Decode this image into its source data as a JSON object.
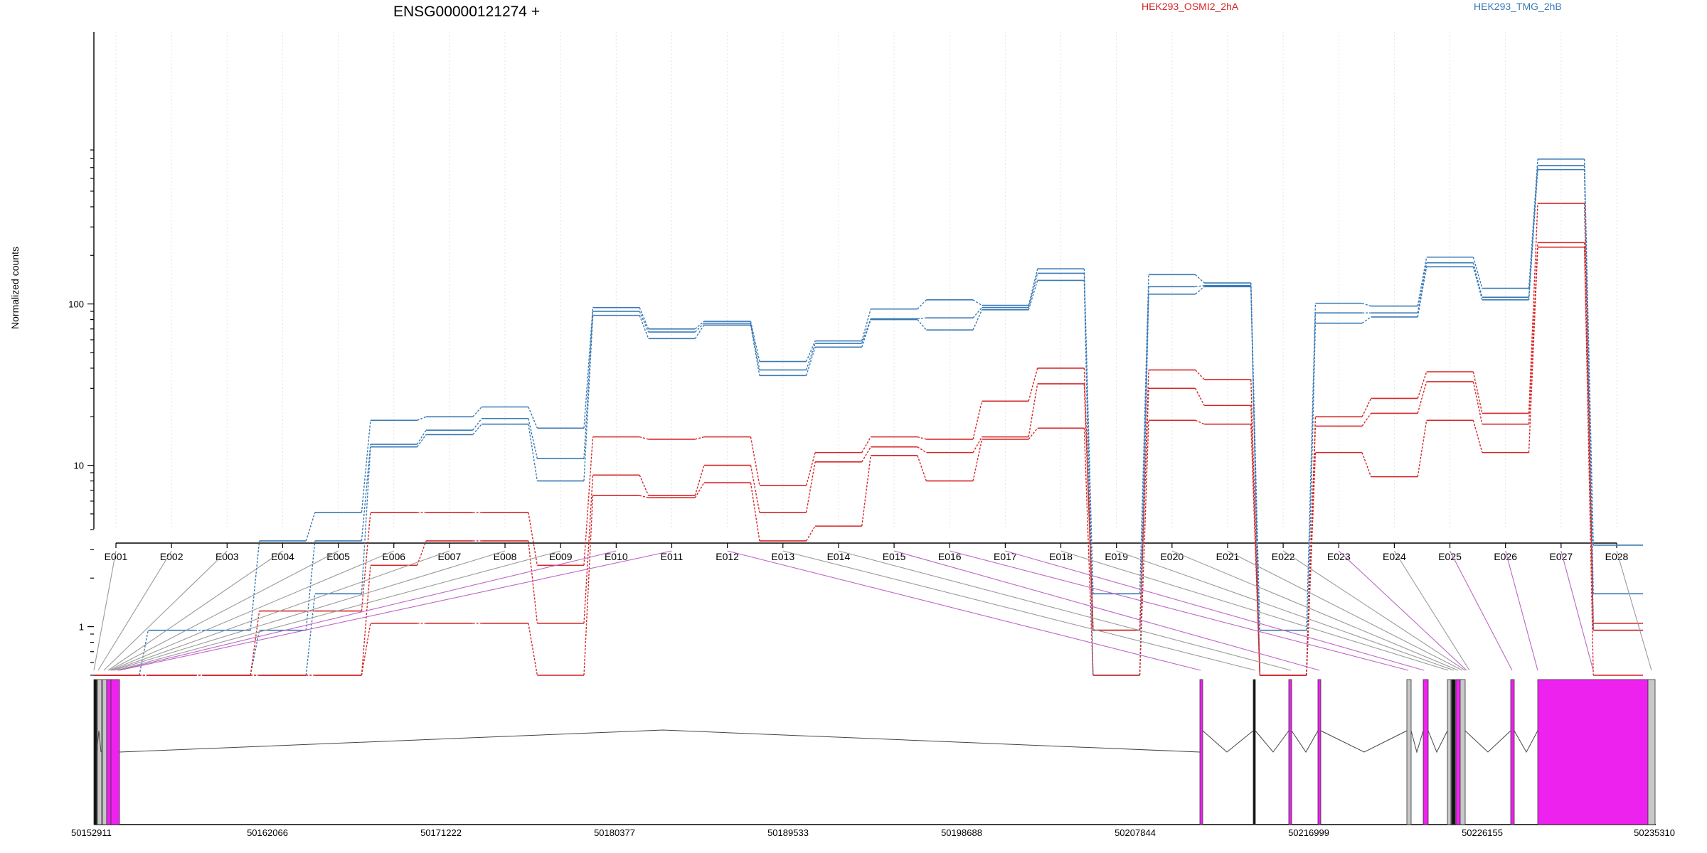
{
  "chart_data": {
    "type": "line",
    "title": "ENSG00000121274 +",
    "ylabel": "Normalized counts",
    "yscale": "log",
    "ylim": [
      0.5,
      900
    ],
    "yticks": [
      1,
      10,
      100
    ],
    "ytick_labels": [
      "1",
      "10",
      "100"
    ],
    "grid": "vertical dotted at exon ticks",
    "legend": [
      {
        "name": "HEK293_OSMI2_2hA",
        "color": "#d62728",
        "position": "top-center"
      },
      {
        "name": "HEK293_TMG_2hB",
        "color": "#3a7ab5",
        "position": "top-right"
      }
    ],
    "categories": [
      "E001",
      "E002",
      "E003",
      "E004",
      "E005",
      "E006",
      "E007",
      "E008",
      "E009",
      "E010",
      "E011",
      "E012",
      "E013",
      "E014",
      "E015",
      "E016",
      "E017",
      "E018",
      "E019",
      "E020",
      "E021",
      "E022",
      "E023",
      "E024",
      "E025",
      "E026",
      "E027",
      "E028"
    ],
    "series": [
      {
        "group": "HEK293_TMG_2hB",
        "color": "#3a7ab5",
        "values": [
          0.5,
          0.95,
          0.95,
          3.4,
          5.1,
          19,
          20,
          23,
          17,
          95,
          70,
          78,
          44,
          59,
          93,
          106,
          98,
          165,
          1.6,
          152,
          135,
          0.95,
          101,
          97,
          195,
          125,
          790,
          3.2
        ]
      },
      {
        "group": "HEK293_TMG_2hB",
        "color": "#3a7ab5",
        "values": [
          0.5,
          0.5,
          0.5,
          0.95,
          3.4,
          13.5,
          16.5,
          19.5,
          11,
          90,
          67,
          76,
          39,
          57,
          81,
          82,
          95,
          155,
          0.95,
          128,
          130,
          0.5,
          88,
          88,
          180,
          110,
          720,
          1.6
        ]
      },
      {
        "group": "HEK293_TMG_2hB",
        "color": "#3a7ab5",
        "values": [
          0.5,
          0.5,
          0.5,
          0.5,
          1.6,
          13,
          15.5,
          18,
          8,
          85,
          61,
          74,
          36,
          54,
          80,
          69,
          92,
          140,
          0.5,
          115,
          128,
          0.5,
          76,
          83,
          170,
          106,
          680,
          0.95
        ]
      },
      {
        "group": "HEK293_OSMI2_2hA",
        "color": "#d62728",
        "values": [
          0.5,
          0.5,
          0.5,
          1.25,
          1.25,
          5.1,
          5.1,
          5.1,
          2.4,
          15,
          14.5,
          15,
          7.5,
          12,
          15,
          14.5,
          25,
          40,
          0.95,
          39,
          34,
          0.5,
          20,
          26,
          38,
          21,
          420,
          1.05
        ]
      },
      {
        "group": "HEK293_OSMI2_2hA",
        "color": "#d62728",
        "values": [
          0.5,
          0.5,
          0.5,
          0.5,
          0.5,
          2.4,
          3.4,
          3.4,
          1.05,
          8.7,
          6.5,
          10,
          5.1,
          10.5,
          13,
          12,
          15,
          32,
          0.95,
          30,
          23.5,
          0.5,
          17.5,
          21,
          33,
          18,
          240,
          0.95
        ]
      },
      {
        "group": "HEK293_OSMI2_2hA",
        "color": "#d62728",
        "values": [
          0.5,
          0.5,
          0.5,
          0.5,
          0.5,
          1.05,
          1.05,
          1.05,
          0.5,
          6.5,
          6.3,
          7.8,
          3.4,
          4.2,
          11.5,
          8,
          14.5,
          17,
          0.5,
          19,
          18,
          0.5,
          12,
          8.5,
          19,
          12,
          225,
          0.5
        ]
      }
    ],
    "gene_model": {
      "coordinates": [
        "50152911",
        "50162066",
        "50171222",
        "50180377",
        "50189533",
        "50198688",
        "50207844",
        "50216999",
        "50226155",
        "50235310"
      ],
      "exon_link_color": {
        "exonic": "#c064c6",
        "other": "#9a9a9a"
      }
    }
  }
}
